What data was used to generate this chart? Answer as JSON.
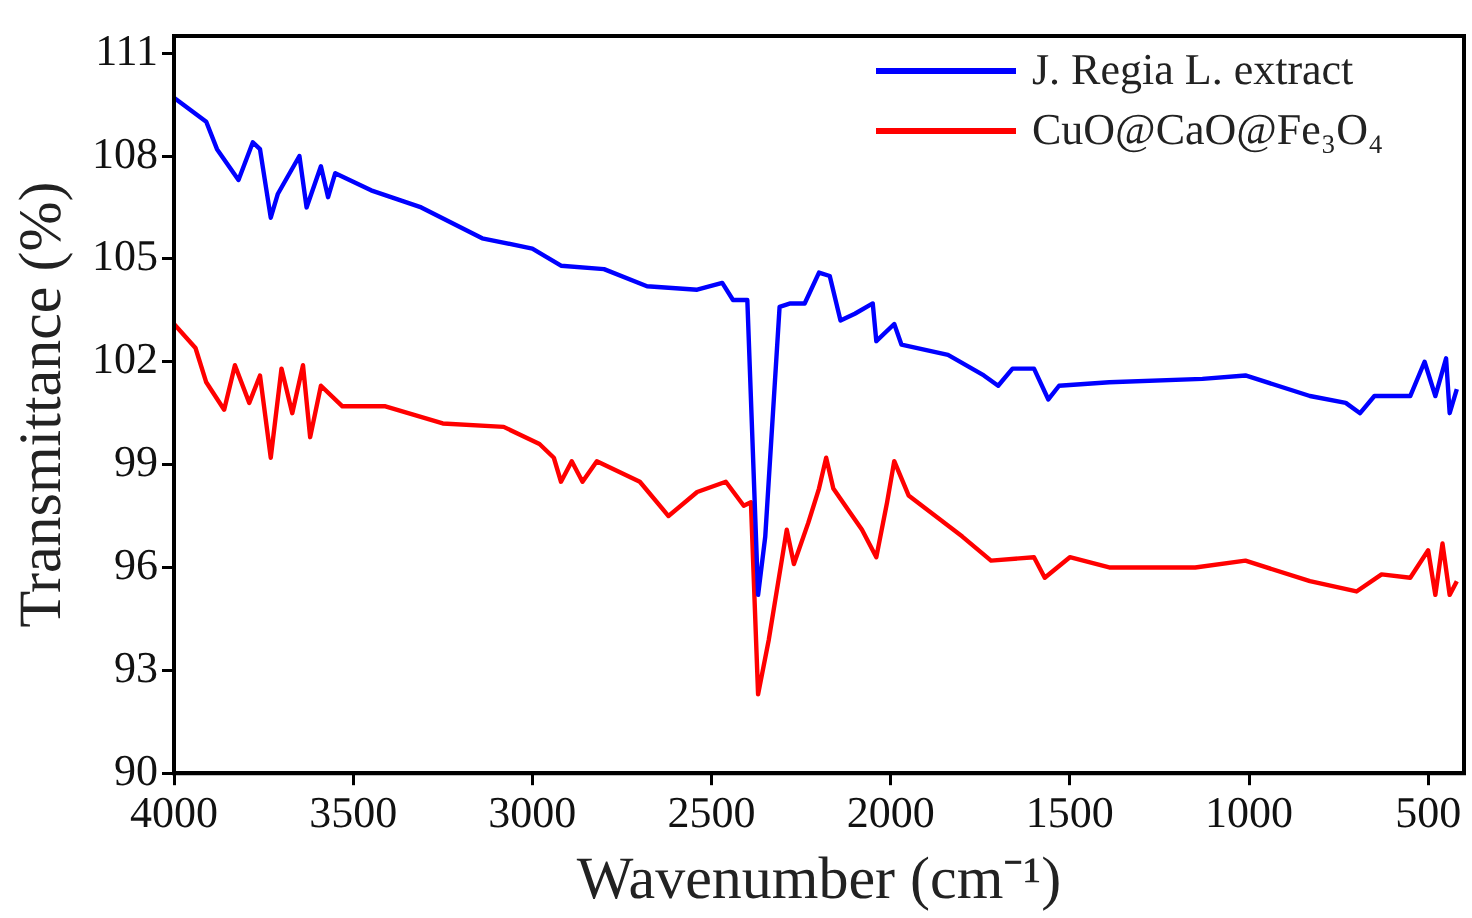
{
  "chart_data": {
    "type": "line",
    "xlabel": "Wavenumber (cm⁻¹)",
    "ylabel": "Transmittance (%)",
    "xlim": [
      4000,
      400
    ],
    "xticks": [
      4000,
      3500,
      3000,
      2500,
      2000,
      1500,
      1000,
      500
    ],
    "ylim": [
      90,
      111.5
    ],
    "yticks": [
      90,
      93,
      96,
      99,
      102,
      105,
      108,
      111
    ],
    "legend": "top right",
    "marker": "none",
    "line_style": "solid",
    "series": [
      {
        "name": "J. Regia L. extract",
        "color": "#0000ff",
        "x": [
          4000,
          3910,
          3880,
          3820,
          3780,
          3760,
          3730,
          3710,
          3650,
          3630,
          3590,
          3570,
          3550,
          3450,
          3310,
          3140,
          3000,
          2920,
          2800,
          2680,
          2540,
          2470,
          2440,
          2400,
          2370,
          2350,
          2310,
          2280,
          2240,
          2200,
          2170,
          2140,
          2100,
          2050,
          2040,
          1990,
          1970,
          1840,
          1740,
          1700,
          1660,
          1600,
          1560,
          1530,
          1390,
          1130,
          1010,
          830,
          730,
          690,
          650,
          550,
          510,
          480,
          450,
          440,
          420
        ],
        "values": [
          109.7,
          109.0,
          108.2,
          107.3,
          108.4,
          108.2,
          106.2,
          106.9,
          108.0,
          106.5,
          107.7,
          106.8,
          107.5,
          107.0,
          106.5,
          105.6,
          105.3,
          104.8,
          104.7,
          104.2,
          104.1,
          104.3,
          103.8,
          103.8,
          95.2,
          96.9,
          103.6,
          103.7,
          103.7,
          104.6,
          104.5,
          103.2,
          103.4,
          103.7,
          102.6,
          103.1,
          102.5,
          102.2,
          101.6,
          101.3,
          101.8,
          101.8,
          100.9,
          101.3,
          101.4,
          101.5,
          101.6,
          101.0,
          100.8,
          100.5,
          101.0,
          101.0,
          102.0,
          101.0,
          102.1,
          100.5,
          101.2
        ]
      },
      {
        "name": "CuO@CaO@Fe₃O₄",
        "color": "#ff0000",
        "x": [
          4000,
          3940,
          3910,
          3860,
          3830,
          3790,
          3760,
          3730,
          3700,
          3670,
          3640,
          3620,
          3590,
          3530,
          3410,
          3250,
          3080,
          2980,
          2940,
          2920,
          2890,
          2860,
          2820,
          2700,
          2620,
          2540,
          2460,
          2410,
          2390,
          2370,
          2340,
          2290,
          2270,
          2230,
          2200,
          2180,
          2160,
          2080,
          2040,
          2010,
          1990,
          1950,
          1800,
          1720,
          1600,
          1570,
          1500,
          1390,
          1150,
          1010,
          830,
          700,
          630,
          550,
          500,
          480,
          460,
          440,
          420
        ],
        "values": [
          103.1,
          102.4,
          101.4,
          100.6,
          101.9,
          100.8,
          101.6,
          99.2,
          101.8,
          100.5,
          101.9,
          99.8,
          101.3,
          100.7,
          100.7,
          100.2,
          100.1,
          99.6,
          99.2,
          98.5,
          99.1,
          98.5,
          99.1,
          98.5,
          97.5,
          98.2,
          98.5,
          97.8,
          97.9,
          92.3,
          93.9,
          97.1,
          96.1,
          97.3,
          98.3,
          99.2,
          98.3,
          97.1,
          96.3,
          97.9,
          99.1,
          98.1,
          96.9,
          96.2,
          96.3,
          95.7,
          96.3,
          96.0,
          96.0,
          96.2,
          95.6,
          95.3,
          95.8,
          95.7,
          96.5,
          95.2,
          96.7,
          95.2,
          95.6
        ]
      }
    ]
  }
}
